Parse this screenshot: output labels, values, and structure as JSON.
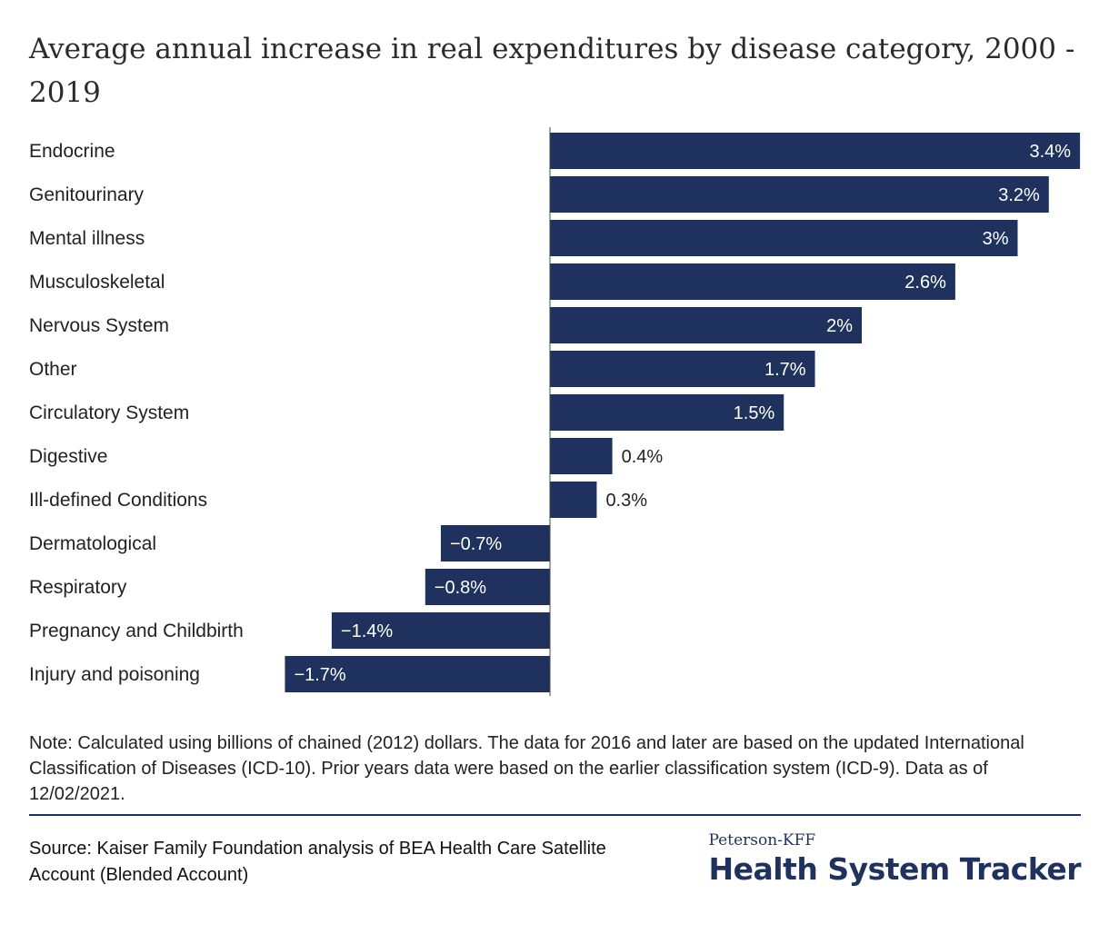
{
  "title": "Average annual increase in real expenditures by disease category, 2000 - 2019",
  "chart_data": {
    "type": "bar",
    "orientation": "horizontal",
    "title": "Average annual increase in real expenditures by disease category, 2000 - 2019",
    "categories": [
      "Endocrine",
      "Genitourinary",
      "Mental illness",
      "Musculoskeletal",
      "Nervous System",
      "Other",
      "Circulatory System",
      "Digestive",
      "Ill-defined Conditions",
      "Dermatological",
      "Respiratory",
      "Pregnancy and Childbirth",
      "Injury and poisoning"
    ],
    "values": [
      3.4,
      3.2,
      3.0,
      2.6,
      2.0,
      1.7,
      1.5,
      0.4,
      0.3,
      -0.7,
      -0.8,
      -1.4,
      -1.7
    ],
    "value_labels": [
      "3.4%",
      "3.2%",
      "3%",
      "2.6%",
      "2%",
      "1.7%",
      "1.5%",
      "0.4%",
      "0.3%",
      "−0.7%",
      "−0.8%",
      "−1.4%",
      "−1.7%"
    ],
    "xlim": [
      -1.7,
      3.4
    ],
    "grid": false,
    "legend": "none",
    "bar_color": "#1f325e"
  },
  "note": "Note: Calculated using billions of chained (2012) dollars. The data for 2016 and later are based on the updated International Classification of Diseases (ICD-10). Prior years data were based on the earlier classification system (ICD-9). Data as of 12/02/2021.",
  "source": "Source: Kaiser Family Foundation analysis of BEA Health Care Satellite Account (Blended Account)",
  "brand": {
    "small": "Peterson-KFF",
    "big": "Health System Tracker"
  }
}
